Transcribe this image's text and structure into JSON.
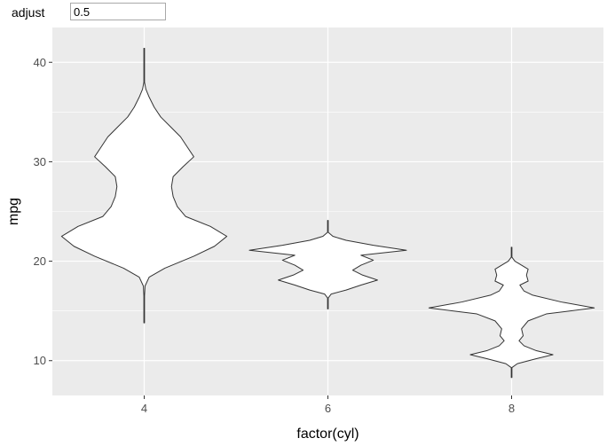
{
  "controls": {
    "adjust_label": "adjust",
    "adjust_value": "0.5"
  },
  "colors": {
    "panel_background": "#ebebeb",
    "grid_major": "#ffffff",
    "violin_fill": "#ffffff",
    "violin_stroke": "#333333",
    "axis_text": "#4d4d4d"
  },
  "chart_data": {
    "type": "violin",
    "title": "",
    "xlabel": "factor(cyl)",
    "ylabel": "mpg",
    "categories": [
      "4",
      "6",
      "8"
    ],
    "ylim": [
      6.5,
      43.5
    ],
    "yticks": [
      10,
      20,
      30,
      40
    ],
    "grid": true,
    "legend": "none",
    "violins": [
      {
        "category": "4",
        "min": 13.8,
        "max": 41.4,
        "profile": [
          [
            13.8,
            0.004
          ],
          [
            16.5,
            0.004
          ],
          [
            17.5,
            0.01
          ],
          [
            18.4,
            0.06
          ],
          [
            19.3,
            0.25
          ],
          [
            20.5,
            0.6
          ],
          [
            21.5,
            0.85
          ],
          [
            22.5,
            1.0
          ],
          [
            23.5,
            0.8
          ],
          [
            24.5,
            0.5
          ],
          [
            25.5,
            0.4
          ],
          [
            26.5,
            0.35
          ],
          [
            27.5,
            0.33
          ],
          [
            28.5,
            0.35
          ],
          [
            29.5,
            0.47
          ],
          [
            30.5,
            0.6
          ],
          [
            31.5,
            0.52
          ],
          [
            32.5,
            0.44
          ],
          [
            33.5,
            0.32
          ],
          [
            34.5,
            0.2
          ],
          [
            35.5,
            0.12
          ],
          [
            36.5,
            0.06
          ],
          [
            37.3,
            0.02
          ],
          [
            38.0,
            0.004
          ],
          [
            41.4,
            0.004
          ]
        ]
      },
      {
        "category": "6",
        "min": 15.2,
        "max": 24.1,
        "profile": [
          [
            15.2,
            0.004
          ],
          [
            16.3,
            0.004
          ],
          [
            16.7,
            0.04
          ],
          [
            17.1,
            0.22
          ],
          [
            17.6,
            0.4
          ],
          [
            18.1,
            0.6
          ],
          [
            18.6,
            0.42
          ],
          [
            19.1,
            0.3
          ],
          [
            19.6,
            0.4
          ],
          [
            20.1,
            0.55
          ],
          [
            20.6,
            0.4
          ],
          [
            21.1,
            0.95
          ],
          [
            21.6,
            0.55
          ],
          [
            22.1,
            0.22
          ],
          [
            22.5,
            0.06
          ],
          [
            22.9,
            0.004
          ],
          [
            24.1,
            0.004
          ]
        ]
      },
      {
        "category": "8",
        "min": 8.3,
        "max": 21.4,
        "profile": [
          [
            8.3,
            0.004
          ],
          [
            9.3,
            0.004
          ],
          [
            9.7,
            0.07
          ],
          [
            10.2,
            0.3
          ],
          [
            10.6,
            0.5
          ],
          [
            11.0,
            0.3
          ],
          [
            11.5,
            0.15
          ],
          [
            12.0,
            0.09
          ],
          [
            12.5,
            0.14
          ],
          [
            13.2,
            0.12
          ],
          [
            14.0,
            0.2
          ],
          [
            14.7,
            0.42
          ],
          [
            15.3,
            1.0
          ],
          [
            15.9,
            0.6
          ],
          [
            16.6,
            0.25
          ],
          [
            17.0,
            0.15
          ],
          [
            17.6,
            0.1
          ],
          [
            18.0,
            0.2
          ],
          [
            18.6,
            0.18
          ],
          [
            19.2,
            0.2
          ],
          [
            19.6,
            0.12
          ],
          [
            20.0,
            0.04
          ],
          [
            20.4,
            0.004
          ],
          [
            21.4,
            0.004
          ]
        ]
      }
    ]
  }
}
